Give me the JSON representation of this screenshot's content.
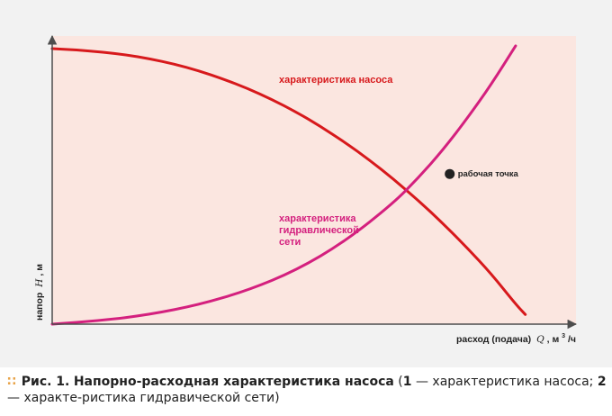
{
  "chart_data": {
    "type": "line",
    "axes": {
      "x_label_prefix": "расход (подача)",
      "x_label_symbol": "Q",
      "x_label_unit_pre": ", м",
      "x_label_unit_sup": "3",
      "x_label_unit_post": "/ч",
      "y_label_prefix": "напор",
      "y_label_symbol": "H",
      "y_label_unit": ", м"
    },
    "series": [
      {
        "name": "характеристика насоса",
        "color": "#d7191c",
        "points": [
          [
            0,
            1.0
          ],
          [
            0.05,
            0.995
          ],
          [
            0.1,
            0.988
          ],
          [
            0.15,
            0.978
          ],
          [
            0.2,
            0.963
          ],
          [
            0.25,
            0.944
          ],
          [
            0.3,
            0.92
          ],
          [
            0.35,
            0.89
          ],
          [
            0.4,
            0.856
          ],
          [
            0.45,
            0.816
          ],
          [
            0.5,
            0.77
          ],
          [
            0.55,
            0.718
          ],
          [
            0.6,
            0.66
          ],
          [
            0.65,
            0.596
          ],
          [
            0.7,
            0.526
          ],
          [
            0.75,
            0.45
          ],
          [
            0.8,
            0.367
          ],
          [
            0.85,
            0.278
          ],
          [
            0.9,
            0.183
          ],
          [
            0.95,
            0.073
          ],
          [
            0.97,
            0.035
          ]
        ]
      },
      {
        "name": "характеристика гидравлической сети",
        "color": "#d4207e",
        "points": [
          [
            0,
            0.0
          ],
          [
            0.1,
            0.013
          ],
          [
            0.2,
            0.035
          ],
          [
            0.3,
            0.07
          ],
          [
            0.4,
            0.122
          ],
          [
            0.5,
            0.195
          ],
          [
            0.6,
            0.3
          ],
          [
            0.7,
            0.44
          ],
          [
            0.75,
            0.53
          ],
          [
            0.8,
            0.63
          ],
          [
            0.85,
            0.745
          ],
          [
            0.9,
            0.87
          ],
          [
            0.95,
            1.01
          ],
          [
            1.0,
            1.01
          ]
        ]
      }
    ],
    "series_labels": {
      "pump": "характеристика насоса",
      "network_line1": "характеристика",
      "network_line2": "гидравлической",
      "network_line3": "сети"
    },
    "annotation": {
      "text": "рабочая точка",
      "x": 0.815,
      "y": 0.545
    }
  },
  "caption": {
    "prefix": "Рис. 1.",
    "title": "Напорно-расходная характеристика насоса",
    "open": " (",
    "n1": "1",
    "t1": " — характеристика насоса; ",
    "n2": "2",
    "t2": " — характе-ристика гидравической сети)"
  },
  "colors": {
    "plot_bg": "#fbe6e0",
    "outer_bg": "#f2f2f2",
    "pump": "#d7191c",
    "network": "#d4207e",
    "axis": "#4d4d4d"
  }
}
